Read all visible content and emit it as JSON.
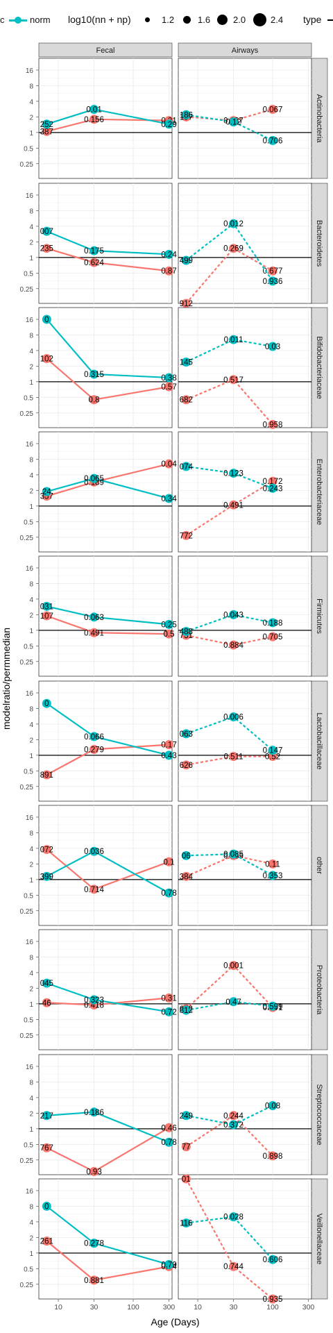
{
  "legend": {
    "type_title": "type",
    "type_items": [
      "c",
      "norm"
    ],
    "size_title": "log10(nn + np)",
    "size_values": [
      "1.2",
      "1.6",
      "2.0",
      "2.4"
    ]
  },
  "colors": {
    "red": "#F8766D",
    "teal": "#00BFC4",
    "strip": "#d9d9d9",
    "grid": "#ebebeb"
  },
  "axis": {
    "xlabel": "Age (Days)",
    "ylabel": "modelratio/permmedian",
    "x_ticks": [
      "10",
      "30",
      "100",
      "300"
    ],
    "y_ticks": [
      "0.25",
      "0.5",
      "1",
      "2",
      "4",
      "8",
      "16"
    ],
    "x_scale": "log10",
    "y_scale": "log2"
  },
  "chart_data": {
    "type": "line",
    "facet_columns": [
      "Fecal",
      "Airways"
    ],
    "facet_rows": [
      "Actinobacteria",
      "Bacteroidetes",
      "Bifidobacteriaceae",
      "Enterobacteriaceae",
      "Firmicutes",
      "Lactobacillaceae",
      "other",
      "Proteobacteria",
      "Streptococcaceae",
      "Veillonellaceae"
    ],
    "panels": [
      {
        "row": "Actinobacteria",
        "col": "Fecal",
        "red": {
          "x": [
            7,
            30,
            300
          ],
          "y": [
            1.05,
            1.8,
            1.7
          ],
          "labels": [
            "387",
            "0.156",
            "0.21"
          ]
        },
        "teal": {
          "x": [
            7,
            30,
            300
          ],
          "y": [
            1.45,
            2.8,
            1.45
          ],
          "labels": [
            "252",
            "0.01",
            "0.29"
          ]
        }
      },
      {
        "row": "Actinobacteria",
        "col": "Airways",
        "red": {
          "x": [
            7,
            30,
            100
          ],
          "y": [
            2.0,
            1.7,
            2.8
          ],
          "labels": [
            "157",
            "0.187",
            "0.067"
          ]
        },
        "teal": {
          "x": [
            7,
            30,
            100
          ],
          "y": [
            2.2,
            1.6,
            0.7
          ],
          "labels": [
            "186",
            "0.12",
            "0.706"
          ]
        }
      },
      {
        "row": "Bacteroidetes",
        "col": "Fecal",
        "red": {
          "x": [
            7,
            30,
            300
          ],
          "y": [
            1.5,
            0.8,
            0.55
          ],
          "labels": [
            "235",
            "0.624",
            "0.87"
          ]
        },
        "teal": {
          "x": [
            7,
            30,
            300
          ],
          "y": [
            3.2,
            1.35,
            1.15
          ],
          "labels": [
            "007",
            "0.175",
            "0.24"
          ]
        }
      },
      {
        "row": "Bacteroidetes",
        "col": "Airways",
        "red": {
          "x": [
            7,
            30,
            100
          ],
          "y": [
            0.13,
            1.5,
            0.55
          ],
          "labels": [
            "912",
            "0.269",
            "0.677"
          ]
        },
        "teal": {
          "x": [
            7,
            30,
            100
          ],
          "y": [
            0.88,
            4.5,
            0.35
          ],
          "labels": [
            "499",
            "0.012",
            "0.936"
          ]
        }
      },
      {
        "row": "Bifidobacteriaceae",
        "col": "Fecal",
        "red": {
          "x": [
            7,
            30,
            300
          ],
          "y": [
            2.8,
            0.45,
            0.8
          ],
          "labels": [
            "102",
            "0.8",
            "0.57"
          ]
        },
        "teal": {
          "x": [
            7,
            30,
            300
          ],
          "y": [
            16,
            1.4,
            1.2
          ],
          "labels": [
            "0",
            "0.315",
            "0.38"
          ]
        }
      },
      {
        "row": "Bifidobacteriaceae",
        "col": "Airways",
        "red": {
          "x": [
            7,
            30,
            100
          ],
          "y": [
            0.45,
            1.1,
            0.15
          ],
          "labels": [
            "682",
            "0.517",
            "0.958"
          ]
        },
        "teal": {
          "x": [
            7,
            30,
            100
          ],
          "y": [
            2.4,
            6.5,
            4.8
          ],
          "labels": [
            "145",
            "0.011",
            "0.03"
          ]
        }
      },
      {
        "row": "Enterobacteriaceae",
        "col": "Fecal",
        "red": {
          "x": [
            7,
            30,
            300
          ],
          "y": [
            1.55,
            2.9,
            6.5
          ],
          "labels": [
            "357",
            "0.189",
            "0.04"
          ]
        },
        "teal": {
          "x": [
            7,
            30,
            300
          ],
          "y": [
            1.9,
            3.4,
            1.4
          ],
          "labels": [
            "24",
            "0.065",
            "0.34"
          ]
        }
      },
      {
        "row": "Enterobacteriaceae",
        "col": "Airways",
        "red": {
          "x": [
            7,
            30,
            100
          ],
          "y": [
            0.27,
            1.05,
            3.0
          ],
          "labels": [
            "772",
            "0.491",
            "0.172"
          ]
        },
        "teal": {
          "x": [
            7,
            30,
            100
          ],
          "y": [
            5.8,
            4.3,
            2.2
          ],
          "labels": [
            "074",
            "0.123",
            "0.243"
          ]
        }
      },
      {
        "row": "Firmicutes",
        "col": "Fecal",
        "red": {
          "x": [
            7,
            30,
            300
          ],
          "y": [
            1.9,
            0.9,
            0.85
          ],
          "labels": [
            "107",
            "0.491",
            "0.5"
          ]
        },
        "teal": {
          "x": [
            7,
            30,
            300
          ],
          "y": [
            2.9,
            1.8,
            1.3
          ],
          "labels": [
            "031",
            "0.063",
            "0.25"
          ]
        }
      },
      {
        "row": "Firmicutes",
        "col": "Airways",
        "red": {
          "x": [
            7,
            30,
            100
          ],
          "y": [
            0.8,
            0.52,
            0.75
          ],
          "labels": [
            "731",
            "0.884",
            "0.705"
          ]
        },
        "teal": {
          "x": [
            7,
            30,
            100
          ],
          "y": [
            0.95,
            2.0,
            1.4
          ],
          "labels": [
            "488",
            "0.043",
            "0.188"
          ]
        }
      },
      {
        "row": "Lactobacillaceae",
        "col": "Fecal",
        "red": {
          "x": [
            7,
            30,
            300
          ],
          "y": [
            0.42,
            1.3,
            1.6
          ],
          "labels": [
            "891",
            "0.279",
            "0.17"
          ]
        },
        "teal": {
          "x": [
            7,
            30,
            300
          ],
          "y": [
            10,
            2.3,
            1.0
          ],
          "labels": [
            "0",
            "0.066",
            "0.43"
          ]
        }
      },
      {
        "row": "Lactobacillaceae",
        "col": "Airways",
        "red": {
          "x": [
            7,
            30,
            100
          ],
          "y": [
            0.65,
            0.95,
            0.95
          ],
          "labels": [
            "626",
            "0.511",
            "0.52"
          ]
        },
        "teal": {
          "x": [
            7,
            30,
            100
          ],
          "y": [
            2.6,
            5.5,
            1.25
          ],
          "labels": [
            "063",
            "0.006",
            "0.147"
          ]
        }
      },
      {
        "row": "other",
        "col": "Fecal",
        "red": {
          "x": [
            7,
            30,
            300
          ],
          "y": [
            3.8,
            0.65,
            2.2
          ],
          "labels": [
            "072",
            "0.714",
            "0.1"
          ]
        },
        "teal": {
          "x": [
            7,
            30,
            300
          ],
          "y": [
            1.15,
            3.5,
            0.55
          ],
          "labels": [
            "399",
            "0.036",
            "0.78"
          ]
        }
      },
      {
        "row": "other",
        "col": "Airways",
        "red": {
          "x": [
            7,
            30,
            100
          ],
          "y": [
            1.15,
            2.9,
            2.0
          ],
          "labels": [
            "384",
            "0.065",
            "0.11"
          ]
        },
        "teal": {
          "x": [
            7,
            30,
            100
          ],
          "y": [
            2.9,
            3.1,
            1.2
          ],
          "labels": [
            "06",
            "0.085",
            "0.353"
          ]
        }
      },
      {
        "row": "Proteobacteria",
        "col": "Fecal",
        "red": {
          "x": [
            7,
            30,
            300
          ],
          "y": [
            1.05,
            0.95,
            1.3
          ],
          "labels": [
            "46",
            "0.418",
            "0.31"
          ]
        },
        "teal": {
          "x": [
            7,
            30,
            300
          ],
          "y": [
            2.5,
            1.2,
            0.7
          ],
          "labels": [
            "045",
            "0.323",
            "0.72"
          ]
        }
      },
      {
        "row": "Proteobacteria",
        "col": "Airways",
        "red": {
          "x": [
            7,
            30,
            100
          ],
          "y": [
            0.8,
            5.5,
            0.85
          ],
          "labels": [
            "672",
            "0.001",
            "0.591"
          ]
        },
        "teal": {
          "x": [
            7,
            30,
            100
          ],
          "y": [
            0.75,
            1.1,
            0.9
          ],
          "labels": [
            "812",
            "0.47",
            "0.599"
          ]
        }
      },
      {
        "row": "Streptococcaceae",
        "col": "Fecal",
        "red": {
          "x": [
            7,
            30,
            300
          ],
          "y": [
            0.43,
            0.15,
            1.05
          ],
          "labels": [
            "767",
            "0.93",
            "0.46"
          ]
        },
        "teal": {
          "x": [
            7,
            30,
            300
          ],
          "y": [
            1.8,
            2.1,
            0.55
          ],
          "labels": [
            "217",
            "0.186",
            "0.78"
          ]
        }
      },
      {
        "row": "Streptococcaceae",
        "col": "Airways",
        "red": {
          "x": [
            7,
            30,
            100
          ],
          "y": [
            0.45,
            1.8,
            0.3
          ],
          "labels": [
            "77",
            "0.244",
            "0.898"
          ]
        },
        "teal": {
          "x": [
            7,
            30,
            100
          ],
          "y": [
            1.8,
            1.2,
            2.8
          ],
          "labels": [
            "249",
            "0.372",
            "0.08"
          ]
        }
      },
      {
        "row": "Veillonellaceae",
        "col": "Fecal",
        "red": {
          "x": [
            7,
            30,
            300
          ],
          "y": [
            1.7,
            0.3,
            0.55
          ],
          "labels": [
            "261",
            "0.881",
            "0.74"
          ]
        },
        "teal": {
          "x": [
            7,
            30,
            300
          ],
          "y": [
            8,
            1.55,
            0.6
          ],
          "labels": [
            "0",
            "0.278",
            "0.79"
          ]
        }
      },
      {
        "row": "Veillonellaceae",
        "col": "Airways",
        "red": {
          "x": [
            7,
            30,
            100
          ],
          "y": [
            28,
            0.55,
            0.13
          ],
          "labels": [
            "01",
            "0.744",
            "0.935"
          ]
        },
        "teal": {
          "x": [
            7,
            30,
            100
          ],
          "y": [
            3.8,
            5.0,
            0.75
          ],
          "labels": [
            "116",
            "0.028",
            "0.606"
          ]
        }
      }
    ]
  }
}
